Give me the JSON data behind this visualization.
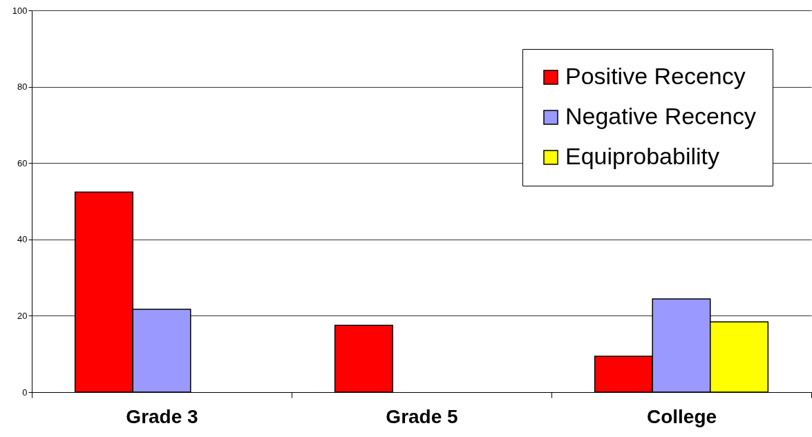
{
  "chart_data": {
    "type": "bar",
    "categories": [
      "Grade 3",
      "Grade 5",
      "College"
    ],
    "series": [
      {
        "name": "Positive Recency",
        "color": "#ff0000",
        "values": [
          52.4,
          17.5,
          9.4
        ]
      },
      {
        "name": "Negative Recency",
        "color": "#9999ff",
        "values": [
          21.7,
          null,
          24.4
        ]
      },
      {
        "name": "Equiprobability",
        "color": "#ffff00",
        "values": [
          null,
          null,
          18.4
        ]
      }
    ],
    "ylim": [
      0,
      100
    ],
    "yticks": [
      0,
      20,
      40,
      60,
      80,
      100
    ],
    "grid": "y",
    "legend": "top right"
  }
}
